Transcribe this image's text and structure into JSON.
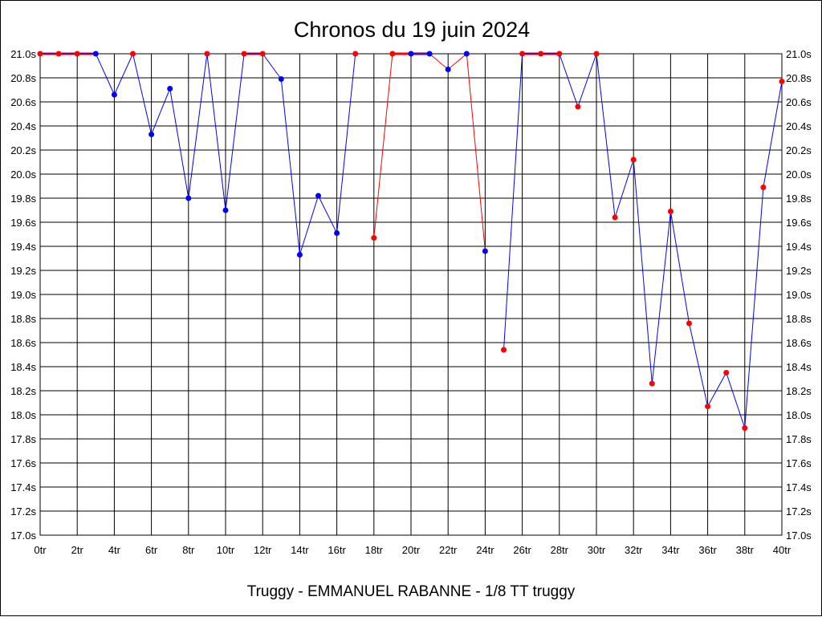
{
  "chart_data": {
    "type": "line",
    "title": "Chronos du 19 juin 2024",
    "caption": "Truggy - EMMANUEL RABANNE - 1/8 TT truggy",
    "ylim": [
      17.0,
      21.0
    ],
    "y_ticks": [
      "17.0s",
      "17.2s",
      "17.4s",
      "17.6s",
      "17.8s",
      "18.0s",
      "18.2s",
      "18.4s",
      "18.6s",
      "18.8s",
      "19.0s",
      "19.2s",
      "19.4s",
      "19.6s",
      "19.8s",
      "20.0s",
      "20.2s",
      "20.4s",
      "20.6s",
      "20.8s",
      "21.0s"
    ],
    "xlim": [
      0,
      40
    ],
    "x_ticks": [
      "0tr",
      "2tr",
      "4tr",
      "6tr",
      "8tr",
      "10tr",
      "12tr",
      "14tr",
      "16tr",
      "18tr",
      "20tr",
      "22tr",
      "24tr",
      "26tr",
      "28tr",
      "30tr",
      "32tr",
      "34tr",
      "36tr",
      "38tr",
      "40tr"
    ],
    "grid": true,
    "y_axis_both_sides": true,
    "colors": {
      "blue": "#0000ff",
      "red": "#ff0000"
    },
    "series": [
      {
        "color": "blue",
        "clipped_top": true,
        "points": [
          [
            0,
            21.0
          ],
          [
            1,
            21.0
          ],
          [
            2,
            21.0
          ],
          [
            3,
            21.0
          ],
          [
            4,
            20.66
          ],
          [
            5,
            21.0
          ],
          [
            6,
            20.33
          ],
          [
            7,
            20.71
          ],
          [
            8,
            19.8
          ],
          [
            9,
            21.0
          ],
          [
            10,
            19.7
          ],
          [
            11,
            21.0
          ],
          [
            12,
            21.0
          ],
          [
            13,
            20.79
          ],
          [
            14,
            19.33
          ],
          [
            15,
            19.82
          ],
          [
            16,
            19.51
          ],
          [
            17,
            21.0
          ]
        ]
      },
      {
        "color": "red",
        "clipped_top": true,
        "points": [
          [
            18,
            19.47
          ],
          [
            19,
            21.0
          ],
          [
            20,
            21.0
          ],
          [
            21,
            21.0
          ],
          [
            22,
            20.87
          ],
          [
            23,
            21.0
          ],
          [
            24,
            19.36
          ]
        ]
      },
      {
        "color": "blue",
        "clipped_top": true,
        "points": [
          [
            25,
            18.54
          ],
          [
            26,
            21.0
          ],
          [
            27,
            21.0
          ],
          [
            28,
            21.0
          ],
          [
            29,
            20.56
          ],
          [
            30,
            21.0
          ],
          [
            31,
            19.64
          ],
          [
            32,
            20.12
          ],
          [
            33,
            18.26
          ],
          [
            34,
            19.69
          ],
          [
            35,
            18.76
          ],
          [
            36,
            18.07
          ],
          [
            37,
            18.35
          ],
          [
            38,
            17.89
          ],
          [
            39,
            19.89
          ],
          [
            40,
            20.77
          ]
        ]
      }
    ],
    "marker_overrides": [
      {
        "series": 0,
        "index": 0,
        "color": "red"
      },
      {
        "series": 0,
        "index": 1,
        "color": "red"
      },
      {
        "series": 0,
        "index": 2,
        "color": "red"
      },
      {
        "series": 0,
        "index": 5,
        "color": "red"
      },
      {
        "series": 0,
        "index": 9,
        "color": "red"
      },
      {
        "series": 0,
        "index": 11,
        "color": "red"
      },
      {
        "series": 0,
        "index": 12,
        "color": "red"
      },
      {
        "series": 0,
        "index": 17,
        "color": "red"
      },
      {
        "series": 1,
        "index": 2,
        "color": "blue"
      },
      {
        "series": 1,
        "index": 3,
        "color": "blue"
      },
      {
        "series": 1,
        "index": 4,
        "color": "blue"
      },
      {
        "series": 1,
        "index": 5,
        "color": "blue"
      },
      {
        "series": 1,
        "index": 6,
        "color": "blue"
      },
      {
        "series": 2,
        "index": 0,
        "color": "red"
      },
      {
        "series": 2,
        "index": 1,
        "color": "red"
      },
      {
        "series": 2,
        "index": 2,
        "color": "red"
      },
      {
        "series": 2,
        "index": 3,
        "color": "red"
      },
      {
        "series": 2,
        "index": 4,
        "color": "red"
      },
      {
        "series": 2,
        "index": 5,
        "color": "red"
      },
      {
        "series": 2,
        "index": 6,
        "color": "red"
      },
      {
        "series": 2,
        "index": 7,
        "color": "red"
      },
      {
        "series": 2,
        "index": 8,
        "color": "red"
      },
      {
        "series": 2,
        "index": 9,
        "color": "red"
      },
      {
        "series": 2,
        "index": 10,
        "color": "red"
      },
      {
        "series": 2,
        "index": 11,
        "color": "red"
      },
      {
        "series": 2,
        "index": 12,
        "color": "red"
      },
      {
        "series": 2,
        "index": 13,
        "color": "red"
      },
      {
        "series": 2,
        "index": 14,
        "color": "red"
      },
      {
        "series": 2,
        "index": 15,
        "color": "red"
      }
    ]
  }
}
